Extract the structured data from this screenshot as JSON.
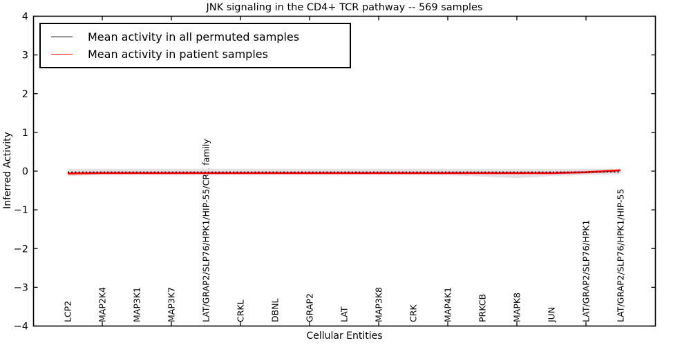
{
  "chart_data": {
    "type": "line",
    "title": "JNK signaling in the CD4+ TCR pathway -- 569 samples",
    "xlabel": "Cellular Entities",
    "ylabel": "Inferred Activity",
    "ylim": [
      -4,
      4
    ],
    "yticks": [
      4,
      3,
      2,
      1,
      0,
      -1,
      -2,
      -3,
      -4
    ],
    "grid": false,
    "legend_position": "upper left",
    "categories": [
      "LCP2",
      "MAP2K4",
      "MAP3K1",
      "MAP3K7",
      "LAT/GRAP2/SLP76/HPK1/HIP-55/CRK family",
      "CRKL",
      "DBNL",
      "GRAP2",
      "LAT",
      "MAP3K8",
      "CRK",
      "MAP4K1",
      "PRKCB",
      "MAPK8",
      "JUN",
      "LAT/GRAP2/SLP76/HPK1",
      "LAT/GRAP2/SLP76/HPK1/HIP-55"
    ],
    "series": [
      {
        "name": "Mean activity in all permuted samples",
        "color": "#000000",
        "line_style": "dotted",
        "values": [
          -0.025,
          -0.025,
          -0.025,
          -0.025,
          -0.025,
          -0.025,
          -0.025,
          -0.025,
          -0.025,
          -0.025,
          -0.025,
          -0.025,
          -0.025,
          -0.025,
          -0.025,
          -0.025,
          -0.02
        ]
      },
      {
        "name": "Mean activity in patient samples",
        "color": "#ff0000",
        "line_style": "solid",
        "values": [
          -0.06,
          -0.05,
          -0.05,
          -0.05,
          -0.05,
          -0.05,
          -0.05,
          -0.05,
          -0.05,
          -0.05,
          -0.05,
          -0.05,
          -0.05,
          -0.05,
          -0.05,
          -0.03,
          0.02
        ]
      }
    ],
    "bands": [
      {
        "name": "permuted-samples-range",
        "color": "#e2e2e2",
        "upper": [
          0.06,
          0.06,
          0.06,
          0.06,
          0.06,
          0.06,
          0.06,
          0.06,
          0.06,
          0.06,
          0.06,
          0.06,
          0.06,
          0.06,
          0.06,
          0.06,
          0.06
        ],
        "lower": [
          -0.13,
          -0.1,
          -0.1,
          -0.1,
          -0.1,
          -0.1,
          -0.1,
          -0.1,
          -0.1,
          -0.1,
          -0.1,
          -0.11,
          -0.14,
          -0.18,
          -0.13,
          -0.1,
          -0.08
        ]
      },
      {
        "name": "patient-samples-range",
        "color": "#f5b8b8",
        "upper": [
          -0.02,
          -0.01,
          -0.01,
          -0.01,
          -0.01,
          -0.01,
          -0.01,
          -0.01,
          -0.01,
          -0.01,
          -0.01,
          -0.01,
          -0.01,
          -0.01,
          -0.01,
          0.01,
          0.06
        ],
        "lower": [
          -0.1,
          -0.09,
          -0.09,
          -0.09,
          -0.09,
          -0.09,
          -0.09,
          -0.09,
          -0.09,
          -0.09,
          -0.09,
          -0.09,
          -0.09,
          -0.09,
          -0.09,
          -0.07,
          -0.02
        ]
      }
    ]
  }
}
